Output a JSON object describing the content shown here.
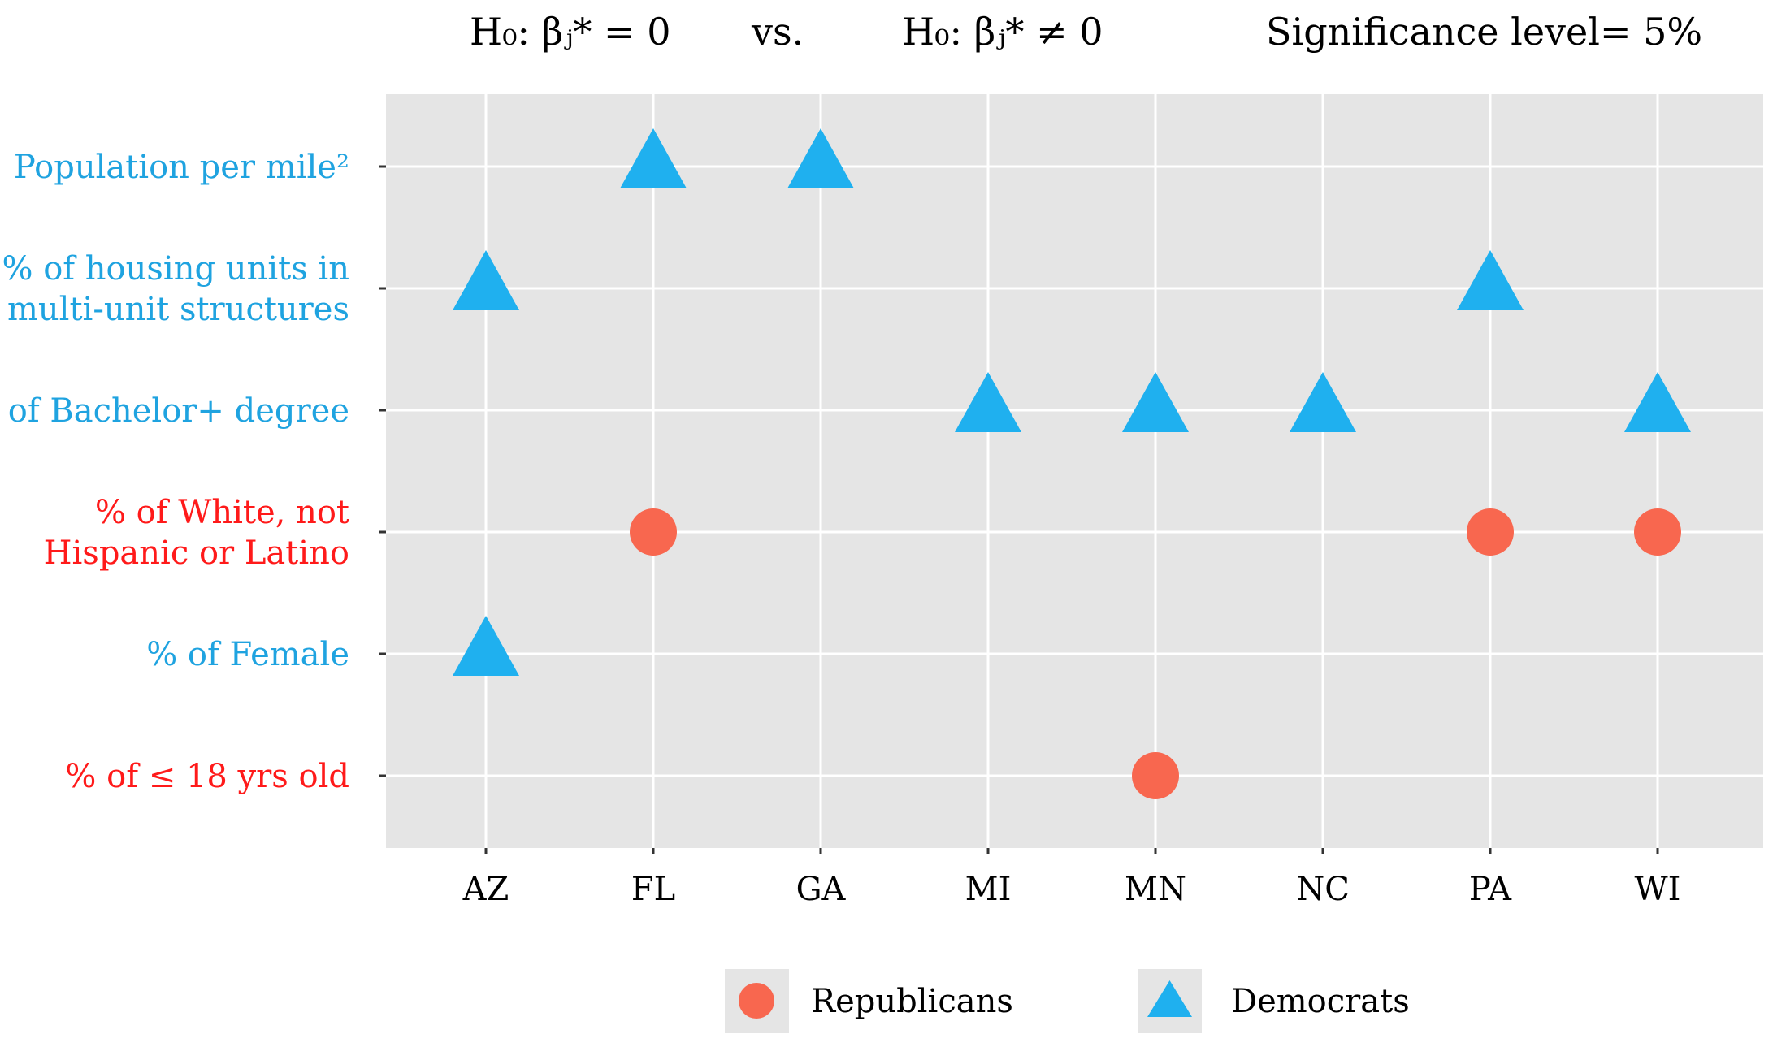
{
  "header": {
    "hypothesis_left": "H₀: βⱼ* = 0",
    "vs_label": "vs.",
    "hypothesis_right": "H₀: βⱼ* ≠ 0",
    "significance": "Significance level= 5%"
  },
  "colors": {
    "panel_bg": "#e5e5e5",
    "grid": "#ffffff",
    "republican": "#f8674f",
    "democrat": "#1fb0ef",
    "label_blue": "#1fa3e0",
    "label_red": "#ff1a1a"
  },
  "chart_data": {
    "type": "scatter",
    "title": "",
    "xlabel": "",
    "ylabel": "",
    "grid": true,
    "legend_position": "bottom",
    "categories": [
      "AZ",
      "FL",
      "GA",
      "MI",
      "MN",
      "NC",
      "PA",
      "WI"
    ],
    "variables": [
      {
        "lines": [
          "Population per mile²"
        ],
        "color": "label_blue"
      },
      {
        "lines": [
          "% of housing units in",
          "multi-unit structures"
        ],
        "color": "label_blue"
      },
      {
        "lines": [
          "% of Bachelor+ degree"
        ],
        "color": "label_blue"
      },
      {
        "lines": [
          "%  of  White, not",
          "Hispanic or Latino"
        ],
        "color": "label_red"
      },
      {
        "lines": [
          "%  of  Female"
        ],
        "color": "label_blue"
      },
      {
        "lines": [
          "% of ≤ 18 yrs old"
        ],
        "color": "label_red"
      }
    ],
    "series": [
      {
        "name": "Republicans",
        "marker": "circle",
        "points": [
          {
            "x": "FL",
            "y": "%  of  White, not Hispanic or Latino"
          },
          {
            "x": "PA",
            "y": "%  of  White, not Hispanic or Latino"
          },
          {
            "x": "WI",
            "y": "%  of  White, not Hispanic or Latino"
          },
          {
            "x": "MN",
            "y": "% of ≤ 18 yrs old"
          }
        ]
      },
      {
        "name": "Democrats",
        "marker": "triangle",
        "points": [
          {
            "x": "FL",
            "y": "Population per mile²"
          },
          {
            "x": "GA",
            "y": "Population per mile²"
          },
          {
            "x": "AZ",
            "y": "% of housing units in multi-unit structures"
          },
          {
            "x": "PA",
            "y": "% of housing units in multi-unit structures"
          },
          {
            "x": "MI",
            "y": "% of Bachelor+ degree"
          },
          {
            "x": "MN",
            "y": "% of Bachelor+ degree"
          },
          {
            "x": "NC",
            "y": "% of Bachelor+ degree"
          },
          {
            "x": "WI",
            "y": "% of Bachelor+ degree"
          },
          {
            "x": "AZ",
            "y": "%  of  Female"
          }
        ]
      }
    ]
  },
  "legend": {
    "items": [
      {
        "label": "Republicans",
        "marker": "circle"
      },
      {
        "label": "Democrats",
        "marker": "triangle"
      }
    ]
  }
}
